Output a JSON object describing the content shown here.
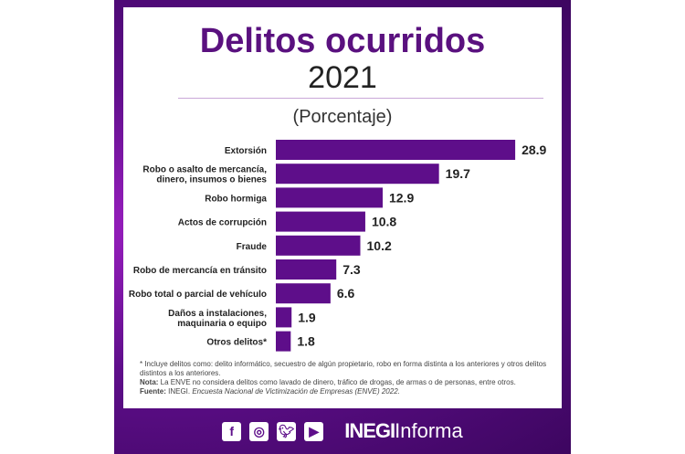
{
  "chart_data": {
    "type": "bar",
    "orientation": "horizontal",
    "title": "Delitos ocurridos",
    "subtitle": "2021",
    "units": "(Porcentaje)",
    "categories": [
      [
        "Extorsión"
      ],
      [
        "Robo o asalto de mercancía,",
        "dinero, insumos o bienes"
      ],
      [
        "Robo hormiga"
      ],
      [
        "Actos de corrupción"
      ],
      [
        "Fraude"
      ],
      [
        "Robo de mercancía en tránsito"
      ],
      [
        "Robo total o parcial de vehículo"
      ],
      [
        "Daños a instalaciones,",
        "maquinaria o equipo"
      ],
      [
        "Otros delitos*"
      ]
    ],
    "values": [
      28.9,
      19.7,
      12.9,
      10.8,
      10.2,
      7.3,
      6.6,
      1.9,
      1.8
    ],
    "value_labels": [
      "28.9",
      "19.7",
      "12.9",
      "10.8",
      "10.2",
      "7.3",
      "6.6",
      "1.9",
      "1.8"
    ],
    "bar_color": "#5e0e8a",
    "grid": false
  },
  "notes": {
    "asterisk": "* Incluye delitos como: delito informático, secuestro de algún propietario, robo en forma distinta a los anteriores y otros delitos distintos a los anteriores.",
    "nota_label": "Nota:",
    "nota": " La ENVE no considera delitos como lavado de dinero, tráfico de drogas, de armas o de personas, entre otros.",
    "fuente_label": "Fuente:",
    "fuente_org": " INEGI. ",
    "fuente_title": "Encuesta Nacional de Victimización de Empresas (ENVE) 2022."
  },
  "footer": {
    "icons": [
      "facebook-icon",
      "instagram-icon",
      "twitter-icon",
      "youtube-icon"
    ],
    "brand_bold": "INEGI",
    "brand_light": "Informa"
  }
}
